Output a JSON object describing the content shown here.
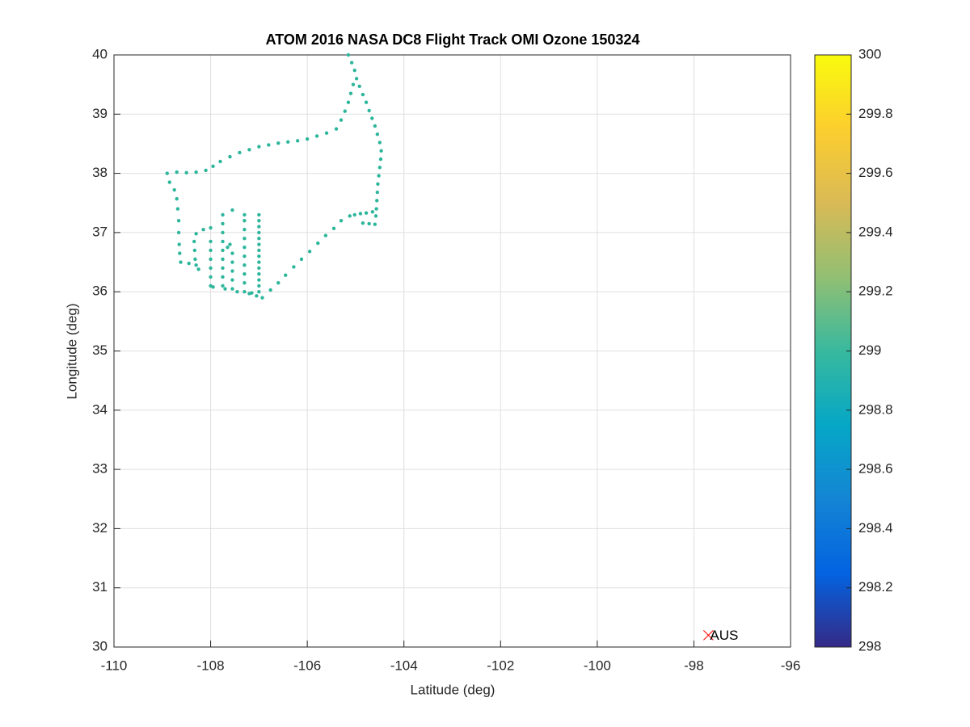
{
  "chart_data": {
    "type": "scatter",
    "title": "ATOM 2016 NASA DC8 Flight Track OMI Ozone 150324",
    "xlabel": "Latitude (deg)",
    "ylabel": "Longitude (deg)",
    "color": "#2eb69c",
    "x": [
      -105.15,
      -105.08,
      -105.02,
      -104.98,
      -104.92,
      -104.85,
      -104.78,
      -104.72,
      -104.66,
      -104.6,
      -104.55,
      -104.5,
      -104.47,
      -104.48,
      -104.5,
      -104.52,
      -104.54,
      -104.55,
      -104.56,
      -104.57,
      -104.58,
      -104.6,
      -104.72,
      -104.85,
      -104.65,
      -104.78,
      -104.9,
      -105.02,
      -105.12,
      -105.3,
      -105.45,
      -105.62,
      -105.78,
      -105.95,
      -106.12,
      -106.28,
      -106.45,
      -106.6,
      -106.76,
      -106.93,
      -105.05,
      -105.1,
      -105.15,
      -105.22,
      -105.3,
      -105.4,
      -105.6,
      -105.8,
      -106.0,
      -106.2,
      -106.4,
      -106.6,
      -106.8,
      -107.0,
      -107.2,
      -107.4,
      -107.6,
      -107.8,
      -107.95,
      -108.1,
      -108.3,
      -108.5,
      -108.7,
      -108.9,
      -108.85,
      -108.75,
      -108.7,
      -108.68,
      -108.66,
      -108.66,
      -108.65,
      -108.64,
      -108.62,
      -108.45,
      -108.3,
      -108.25,
      -108.32,
      -108.33,
      -108.34,
      -108.3,
      -108.15,
      -108.0,
      -108.0,
      -108.0,
      -108.0,
      -108.0,
      -108.0,
      -108.0,
      -107.75,
      -107.75,
      -107.75,
      -107.75,
      -107.75,
      -107.75,
      -107.75,
      -107.75,
      -107.75,
      -107.65,
      -107.6,
      -107.55,
      -107.55,
      -107.55,
      -107.55,
      -107.55,
      -107.55,
      -107.3,
      -107.3,
      -107.3,
      -107.3,
      -107.3,
      -107.3,
      -107.3,
      -107.3,
      -107.3,
      -107.3,
      -107.0,
      -107.0,
      -107.0,
      -107.0,
      -107.0,
      -107.0,
      -107.0,
      -107.0,
      -107.0,
      -107.0,
      -107.0,
      -107.0,
      -107.0,
      -107.0,
      -107.95,
      -107.7,
      -107.45,
      -107.2,
      -107.05,
      -107.15
    ],
    "y": [
      40.0,
      39.87,
      39.74,
      39.6,
      39.47,
      39.33,
      39.2,
      39.06,
      38.93,
      38.8,
      38.66,
      38.52,
      38.38,
      38.24,
      38.1,
      37.96,
      37.82,
      37.68,
      37.54,
      37.4,
      37.28,
      37.14,
      37.15,
      37.16,
      37.35,
      37.33,
      37.32,
      37.3,
      37.28,
      37.2,
      37.07,
      36.95,
      36.82,
      36.68,
      36.55,
      36.42,
      36.28,
      36.15,
      36.03,
      35.9,
      39.5,
      39.35,
      39.2,
      39.05,
      38.9,
      38.75,
      38.68,
      38.63,
      38.58,
      38.55,
      38.53,
      38.51,
      38.48,
      38.45,
      38.4,
      38.35,
      38.28,
      38.2,
      38.12,
      38.05,
      38.02,
      38.01,
      38.02,
      38.0,
      37.85,
      37.72,
      37.57,
      37.4,
      37.2,
      37.0,
      36.8,
      36.65,
      36.5,
      36.48,
      36.45,
      36.38,
      36.55,
      36.7,
      36.85,
      36.98,
      37.05,
      37.08,
      36.1,
      36.25,
      36.4,
      36.55,
      36.7,
      36.85,
      36.1,
      36.25,
      36.4,
      36.55,
      36.7,
      36.85,
      37.0,
      37.15,
      37.3,
      36.75,
      36.8,
      37.38,
      36.05,
      36.2,
      36.35,
      36.5,
      36.65,
      36.0,
      36.15,
      36.3,
      36.45,
      36.6,
      36.75,
      36.9,
      37.05,
      37.2,
      37.3,
      36.0,
      36.1,
      36.2,
      36.3,
      36.4,
      36.5,
      36.6,
      36.7,
      36.8,
      36.9,
      37.0,
      37.1,
      37.2,
      37.3,
      36.08,
      36.05,
      36.0,
      35.97,
      35.93,
      35.98
    ],
    "xlim": [
      -110,
      -96
    ],
    "xticks": [
      -110,
      -108,
      -106,
      -104,
      -102,
      -100,
      -98,
      -96
    ],
    "ylim": [
      30,
      40
    ],
    "yticks": [
      30,
      31,
      32,
      33,
      34,
      35,
      36,
      37,
      38,
      39,
      40
    ],
    "grid": true,
    "annotation": {
      "text": "AUS",
      "x": -97.7,
      "y": 30.2,
      "color": "#ff0000"
    },
    "colorbar": {
      "colormap": "parula",
      "lim": [
        298,
        300
      ],
      "ticks": [
        298,
        298.2,
        298.4,
        298.6,
        298.8,
        299,
        299.2,
        299.4,
        299.6,
        299.8,
        300
      ]
    }
  }
}
